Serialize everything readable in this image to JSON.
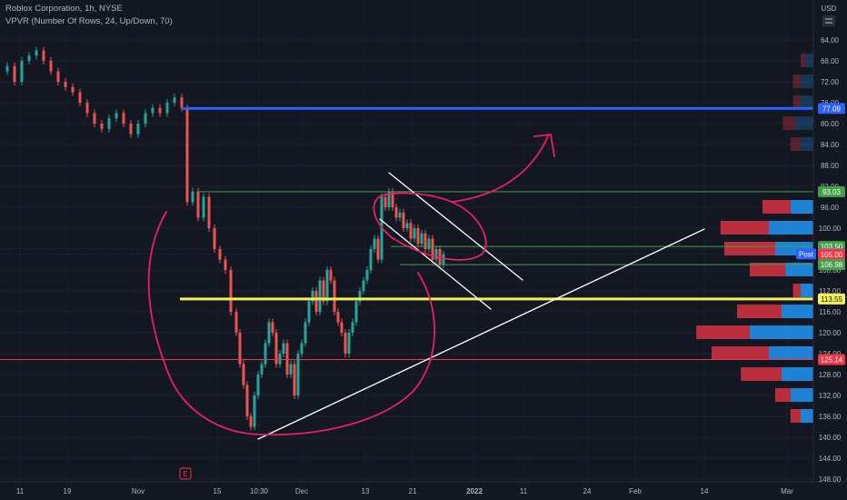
{
  "header": {
    "title": "Roblox Corporation, 1h, NYSE",
    "indicator": "VPVR (Number Of Rows, 24, Up/Down, 70)"
  },
  "price_axis": {
    "currency": "USD",
    "ticks": [
      "64.00",
      "68.00",
      "72.00",
      "76.00",
      "80.00",
      "84.00",
      "88.00",
      "92.00",
      "96.00",
      "100.00",
      "104.00",
      "108.00",
      "112.00",
      "116.00",
      "120.00",
      "124.00",
      "128.00",
      "132.00",
      "136.00",
      "140.00",
      "144.00",
      "148.00"
    ],
    "inverted": true
  },
  "time_axis": {
    "labels": [
      "11",
      "19",
      "Nov",
      "15",
      "10:30",
      "Dec",
      "13",
      "21",
      "2022",
      "11",
      "24",
      "Feb",
      "14",
      "Mar"
    ]
  },
  "price_tags": [
    {
      "text": "77.09",
      "color": "#2962ff",
      "value": 77.09
    },
    {
      "text": "93.03",
      "color": "#43a047",
      "value": 93.03
    },
    {
      "text": "103.50",
      "color": "#43a047",
      "value": 103.5
    },
    {
      "text": "104.94",
      "color": "#2962ff",
      "value": 104.94
    },
    {
      "text": "105.00",
      "color": "#f23645",
      "value": 105.0
    },
    {
      "text": "106.98",
      "color": "#43a047",
      "value": 106.98
    },
    {
      "text": "113.55",
      "color": "#f5f05a",
      "value": 113.55
    },
    {
      "text": "125.14",
      "color": "#f23645",
      "value": 125.14
    }
  ],
  "post_label": "Post",
  "earnings_marker": "E",
  "chart_data": {
    "type": "candlestick",
    "title": "Roblox Corporation, 1h, NYSE",
    "y_axis_inverted": true,
    "ylim": [
      64,
      148
    ],
    "horizontal_levels": [
      {
        "price": 77.09,
        "color": "#2962ff"
      },
      {
        "price": 93.03,
        "color": "#43a047"
      },
      {
        "price": 103.5,
        "color": "#43a047"
      },
      {
        "price": 106.98,
        "color": "#43a047"
      },
      {
        "price": 113.55,
        "color": "#f5f05a"
      },
      {
        "price": 125.14,
        "color": "#f23645"
      }
    ],
    "volume_profile_rows": [
      {
        "price": 68,
        "up": 0.06,
        "down": 0.04
      },
      {
        "price": 72,
        "up": 0.1,
        "down": 0.06
      },
      {
        "price": 76,
        "up": 0.1,
        "down": 0.06
      },
      {
        "price": 80,
        "up": 0.14,
        "down": 0.1
      },
      {
        "price": 84,
        "up": 0.1,
        "down": 0.08
      },
      {
        "price": 96,
        "up": 0.18,
        "down": 0.22
      },
      {
        "price": 100,
        "up": 0.35,
        "down": 0.38
      },
      {
        "price": 104,
        "up": 0.3,
        "down": 0.4
      },
      {
        "price": 108,
        "up": 0.22,
        "down": 0.28
      },
      {
        "price": 112,
        "up": 0.1,
        "down": 0.06
      },
      {
        "price": 116,
        "up": 0.25,
        "down": 0.35
      },
      {
        "price": 120,
        "up": 0.5,
        "down": 0.42
      },
      {
        "price": 124,
        "up": 0.35,
        "down": 0.45
      },
      {
        "price": 128,
        "up": 0.25,
        "down": 0.32
      },
      {
        "price": 132,
        "up": 0.18,
        "down": 0.12
      },
      {
        "price": 136,
        "up": 0.1,
        "down": 0.08
      }
    ]
  }
}
